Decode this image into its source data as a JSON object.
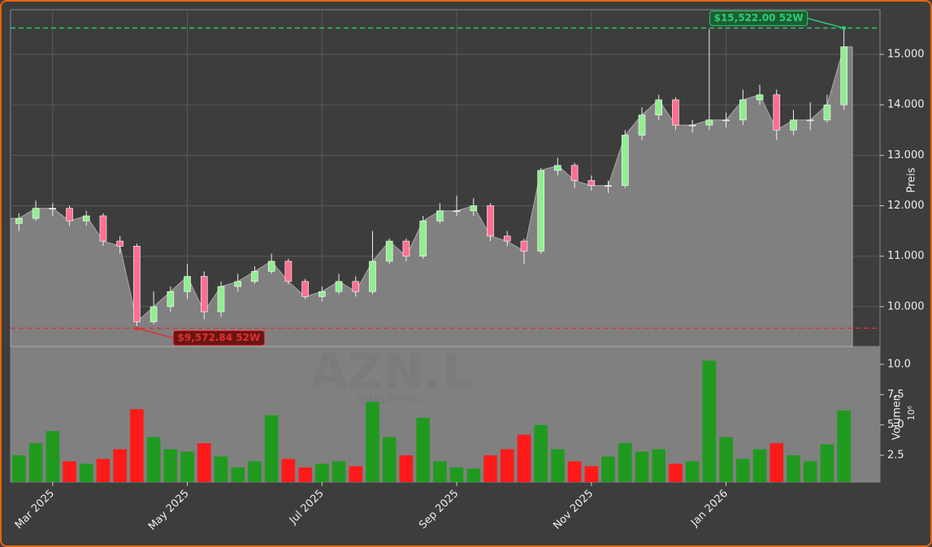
{
  "chart_data": {
    "type": "candlestick",
    "symbol": "AZN.L",
    "company": "AstraZeneca",
    "y_label": "Preis",
    "y2_label": "Volumen",
    "y2_unit": "10⁶",
    "categories": [
      null,
      null,
      "Mar 2025",
      null,
      null,
      null,
      null,
      null,
      null,
      null,
      "May 2025",
      null,
      null,
      null,
      null,
      null,
      null,
      null,
      "Jul 2025",
      null,
      null,
      null,
      null,
      null,
      null,
      null,
      "Sep 2025",
      null,
      null,
      null,
      null,
      null,
      null,
      null,
      "Nov 2025",
      null,
      null,
      null,
      null,
      null,
      null,
      null,
      "Jan 2026",
      null,
      null,
      null,
      null,
      null,
      null,
      null
    ],
    "open": [
      11650,
      11750,
      11950,
      11950,
      11700,
      11800,
      11300,
      11200,
      9700,
      10000,
      10300,
      10600,
      9900,
      10400,
      10500,
      10700,
      10900,
      10500,
      10200,
      10300,
      10500,
      10300,
      10900,
      11300,
      11000,
      11700,
      11900,
      11900,
      12000,
      11400,
      11300,
      11100,
      12700,
      12800,
      12500,
      12400,
      12400,
      13400,
      13800,
      14100,
      13600,
      13600,
      13700,
      13700,
      14100,
      14200,
      13500,
      13700,
      13700,
      14000
    ],
    "high": [
      11850,
      12100,
      12050,
      12000,
      11900,
      11850,
      11400,
      11250,
      10300,
      10400,
      10850,
      10700,
      10500,
      10650,
      10800,
      11050,
      10950,
      10550,
      10400,
      10650,
      10600,
      11500,
      11350,
      11350,
      11800,
      12050,
      12200,
      12150,
      12050,
      11500,
      11350,
      12750,
      12950,
      12850,
      12600,
      12500,
      13500,
      13950,
      14200,
      14150,
      13700,
      15500,
      13850,
      14300,
      14400,
      14300,
      13900,
      14050,
      14200,
      15522
    ],
    "low": [
      11500,
      11700,
      11800,
      11600,
      11600,
      11200,
      11050,
      9572.84,
      9650,
      9900,
      10150,
      9750,
      9800,
      10300,
      10450,
      10650,
      10450,
      10150,
      10100,
      10250,
      10200,
      10250,
      10850,
      10900,
      10950,
      11650,
      11800,
      11800,
      11300,
      11200,
      10850,
      11050,
      12600,
      12350,
      12300,
      12250,
      12350,
      13300,
      13700,
      13500,
      13450,
      13500,
      13550,
      13600,
      14000,
      13300,
      13400,
      13500,
      13650,
      13900
    ],
    "close": [
      11750,
      11950,
      11950,
      11700,
      11800,
      11300,
      11200,
      9700,
      10000,
      10300,
      10600,
      9900,
      10400,
      10500,
      10700,
      10900,
      10500,
      10200,
      10300,
      10500,
      10300,
      10900,
      11300,
      11000,
      11700,
      11900,
      11900,
      12000,
      11400,
      11300,
      11100,
      12700,
      12800,
      12500,
      12400,
      12400,
      13400,
      13800,
      14100,
      13600,
      13600,
      13700,
      13700,
      14100,
      14200,
      13500,
      13700,
      13700,
      14000,
      15150
    ],
    "volume": [
      2.5,
      3.5,
      4.5,
      2.0,
      1.8,
      2.2,
      3.0,
      6.3,
      4.0,
      3.0,
      2.8,
      3.5,
      2.4,
      1.5,
      2.0,
      5.8,
      2.2,
      1.5,
      1.8,
      2.0,
      1.6,
      6.9,
      4.0,
      2.5,
      5.6,
      2.0,
      1.5,
      1.4,
      2.5,
      3.0,
      4.2,
      5.0,
      3.0,
      2.0,
      1.6,
      2.4,
      3.5,
      2.8,
      3.0,
      1.8,
      2.0,
      10.3,
      4.0,
      2.2,
      3.0,
      3.5,
      2.5,
      2.0,
      3.4,
      6.2
    ],
    "up_color": "#90ee90",
    "down_color": "#ff6f91",
    "volume_up_color": "#1f9a1f",
    "volume_down_color": "#ff1a1a",
    "area_color": "#808080",
    "ylim": [
      9210,
      15885
    ],
    "yticks": [
      {
        "value": 10000,
        "label": "10.000"
      },
      {
        "value": 11000,
        "label": "11.000"
      },
      {
        "value": 12000,
        "label": "12.000"
      },
      {
        "value": 13000,
        "label": "13.000"
      },
      {
        "value": 14000,
        "label": "14.000"
      },
      {
        "value": 15000,
        "label": "15.000"
      }
    ],
    "y2lim": [
      0.29,
      11.47
    ],
    "y2ticks": [
      2.5,
      {
        "value": 5,
        "label": "5.0"
      },
      {
        "value": 7.5,
        "label": "7.5"
      },
      {
        "value": 10,
        "label": "10.0"
      }
    ],
    "grid": true,
    "annotations": [
      {
        "text": "$15,522.00 52W",
        "value": 15522,
        "kind": "high",
        "color": "#2ecc71"
      },
      {
        "text": "$9,572.84 52W",
        "value": 9572.84,
        "kind": "low",
        "color": "#e03030"
      }
    ]
  }
}
